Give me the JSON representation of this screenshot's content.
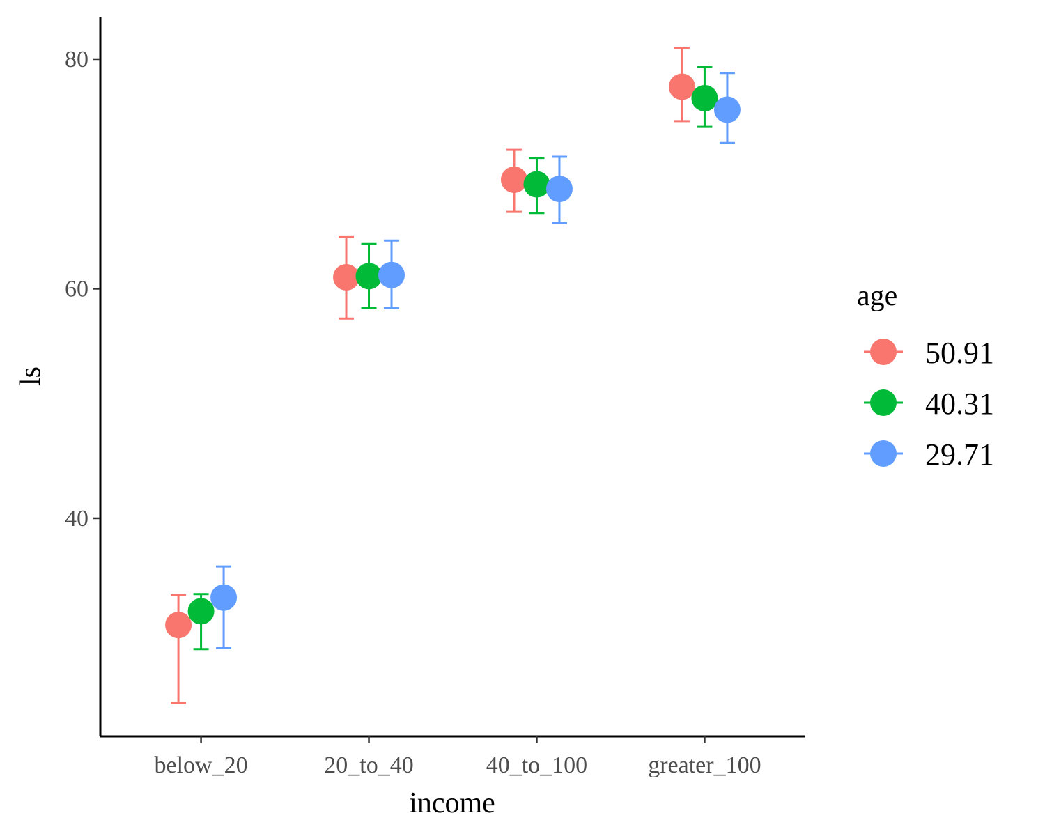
{
  "chart_data": {
    "type": "scatter",
    "xlabel": "income",
    "ylabel": "ls",
    "categories": [
      "below_20",
      "20_to_40",
      "40_to_100",
      "greater_100"
    ],
    "ylim": [
      21,
      83.7
    ],
    "yticks": [
      40,
      60,
      80
    ],
    "legend": {
      "title": "age",
      "position": "right"
    },
    "grid": false,
    "series": [
      {
        "name": "50.91",
        "color": "#F8766D",
        "values": [
          30.7,
          61.0,
          69.5,
          77.6
        ],
        "lower": [
          23.9,
          57.4,
          66.7,
          74.6
        ],
        "upper": [
          33.3,
          64.5,
          72.1,
          81.0
        ]
      },
      {
        "name": "40.31",
        "color": "#00BA38",
        "values": [
          31.9,
          61.1,
          69.1,
          76.6
        ],
        "lower": [
          28.6,
          58.3,
          66.6,
          74.1
        ],
        "upper": [
          33.4,
          63.9,
          71.4,
          79.3
        ]
      },
      {
        "name": "29.71",
        "color": "#619CFF",
        "values": [
          33.1,
          61.2,
          68.7,
          75.6
        ],
        "lower": [
          28.7,
          58.3,
          65.7,
          72.7
        ],
        "upper": [
          35.8,
          64.2,
          71.5,
          78.8
        ]
      }
    ]
  }
}
